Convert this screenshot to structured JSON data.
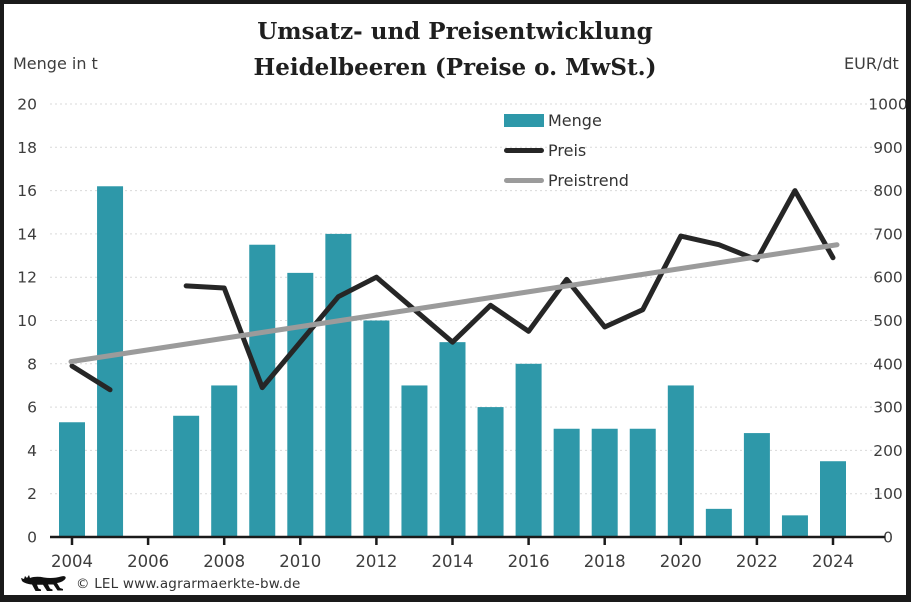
{
  "title": {
    "line1": "Umsatz- und Preisentwicklung",
    "line2": "Heidelbeeren (Preise o. MwSt.)"
  },
  "axes": {
    "left_title": "Menge in t",
    "right_title": "EUR/dt",
    "left_ticks": [
      0,
      2,
      4,
      6,
      8,
      10,
      12,
      14,
      16,
      18,
      20
    ],
    "right_ticks": [
      0,
      100,
      200,
      300,
      400,
      500,
      600,
      700,
      800,
      900,
      1000
    ],
    "x_tick_labels": [
      2004,
      2006,
      2008,
      2010,
      2012,
      2014,
      2016,
      2018,
      2020,
      2022,
      2024
    ]
  },
  "legend": {
    "items": [
      {
        "label": "Menge",
        "swatch": "bar"
      },
      {
        "label": "Preis",
        "swatch": "line"
      },
      {
        "label": "Preistrend",
        "swatch": "line"
      }
    ]
  },
  "footer": {
    "logo": "baden-wuerttemberg-lion",
    "text": "© LEL www.agrarmaerkte-bw.de"
  },
  "colors": {
    "menge": "#2e98a9",
    "preis": "#262626",
    "preistrend": "#9b9b9b",
    "grid": "#d9d9d9",
    "axis": "#1a1a1a",
    "tick_text": "#3d3d3d",
    "frame": "#1a1a1a"
  },
  "chart_data": {
    "type": "bar+line combo",
    "title": "Umsatz- und Preisentwicklung Heidelbeeren (Preise o. MwSt.)",
    "x": [
      2004,
      2005,
      2006,
      2007,
      2008,
      2009,
      2010,
      2011,
      2012,
      2013,
      2014,
      2015,
      2016,
      2017,
      2018,
      2019,
      2020,
      2021,
      2022,
      2023,
      2024
    ],
    "series": [
      {
        "name": "Menge",
        "type": "bar",
        "axis": "left",
        "unit": "t",
        "values": [
          5.3,
          16.2,
          null,
          5.6,
          7.0,
          13.5,
          12.2,
          14.0,
          10.0,
          7.0,
          9.0,
          6.0,
          8.0,
          5.0,
          5.0,
          5.0,
          7.0,
          1.3,
          4.8,
          1.0,
          3.5
        ]
      },
      {
        "name": "Preis",
        "type": "line",
        "axis": "right",
        "unit": "EUR/dt",
        "values": [
          395,
          340,
          null,
          580,
          575,
          345,
          450,
          555,
          600,
          525,
          450,
          535,
          475,
          595,
          485,
          525,
          695,
          675,
          640,
          800,
          645
        ]
      },
      {
        "name": "Preistrend",
        "type": "line",
        "axis": "right",
        "unit": "EUR/dt",
        "values": [
          405,
          418.5,
          432,
          445.5,
          459,
          472.5,
          486,
          499.5,
          513,
          526.5,
          540,
          553.5,
          567,
          580.5,
          594,
          607.5,
          621,
          634.5,
          648,
          661.5,
          675
        ]
      }
    ],
    "left_ylim": [
      0,
      20
    ],
    "right_ylim": [
      0,
      1000
    ],
    "grid": true,
    "grid_style": "dashed",
    "legend_position": "top-center",
    "notes": "no data for 2006; Preis line has a gap at 2006"
  }
}
